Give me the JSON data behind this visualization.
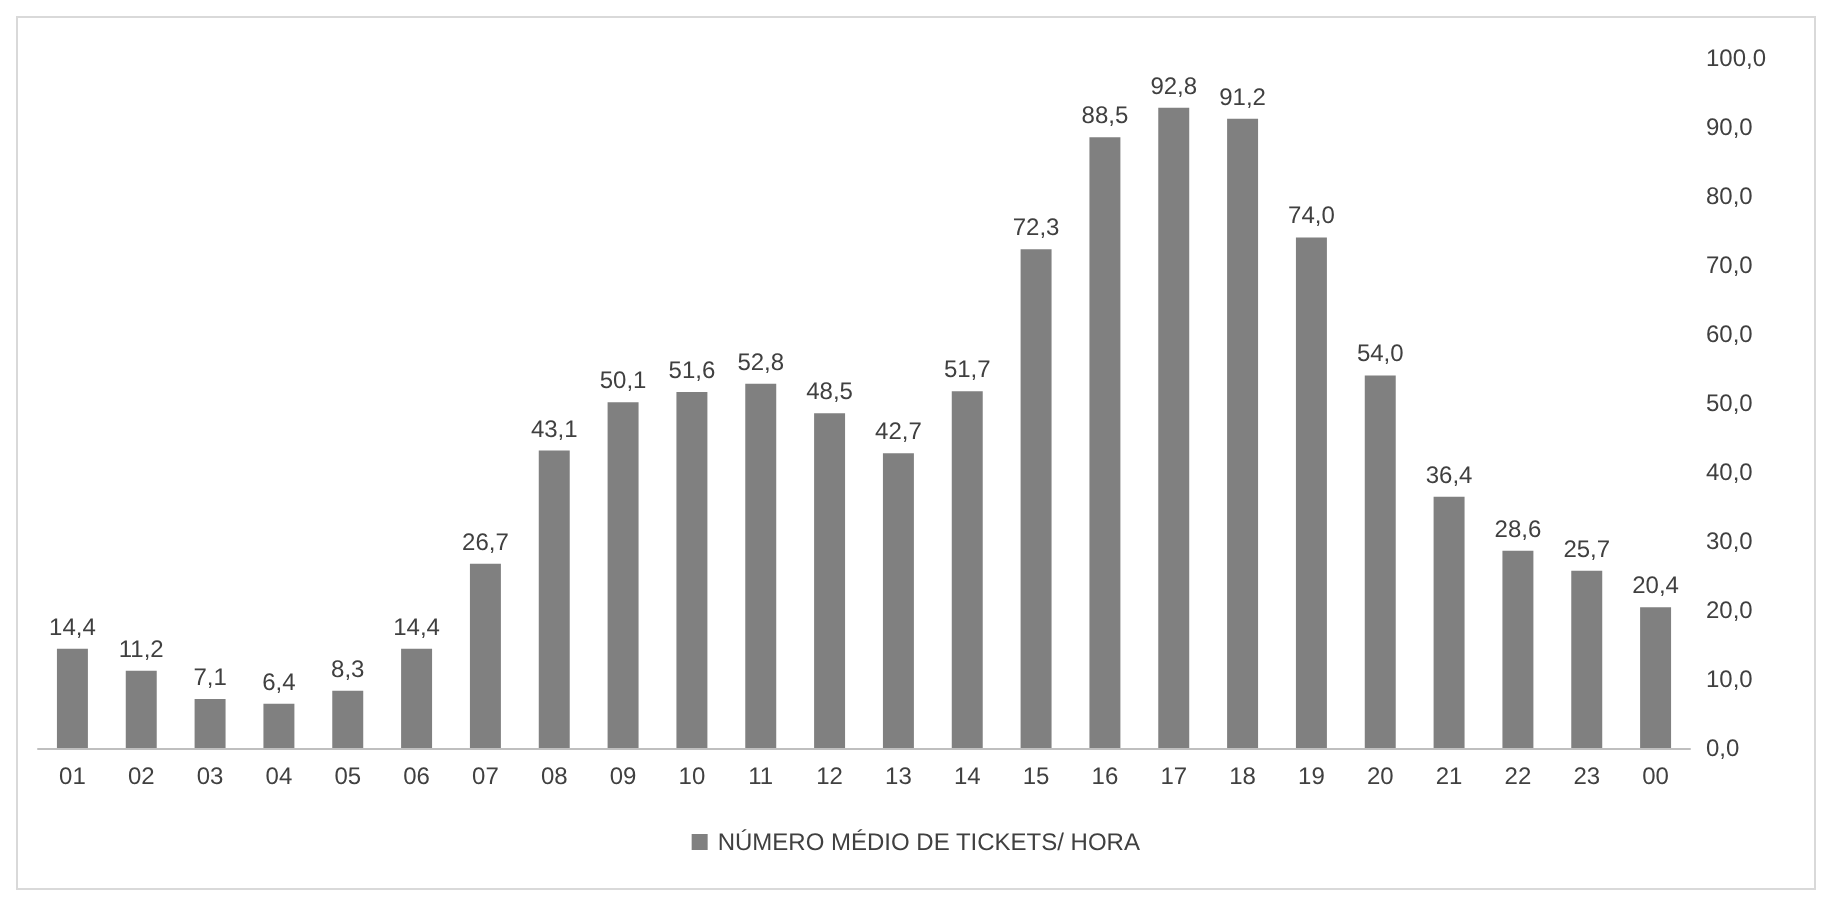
{
  "chart_data": {
    "type": "bar",
    "categories": [
      "01",
      "02",
      "03",
      "04",
      "05",
      "06",
      "07",
      "08",
      "09",
      "10",
      "11",
      "12",
      "13",
      "14",
      "15",
      "16",
      "17",
      "18",
      "19",
      "20",
      "21",
      "22",
      "23",
      "00"
    ],
    "series": [
      {
        "name": "NÚMERO MÉDIO DE TICKETS/ HORA",
        "color": "#808080",
        "values": [
          14.4,
          11.2,
          7.1,
          6.4,
          8.3,
          14.4,
          26.7,
          43.1,
          50.1,
          51.6,
          52.8,
          48.5,
          42.7,
          51.7,
          72.3,
          88.5,
          92.8,
          91.2,
          74.0,
          54.0,
          36.4,
          28.6,
          25.7,
          20.4
        ],
        "value_labels": [
          "14,4",
          "11,2",
          "7,1",
          "6,4",
          "8,3",
          "14,4",
          "26,7",
          "43,1",
          "50,1",
          "51,6",
          "52,8",
          "48,5",
          "42,7",
          "51,7",
          "72,3",
          "88,5",
          "92,8",
          "91,2",
          "74,0",
          "54,0",
          "36,4",
          "28,6",
          "25,7",
          "20,4"
        ]
      }
    ],
    "ylim": [
      0,
      100
    ],
    "yticks": [
      {
        "value": 0,
        "label": "0,0"
      },
      {
        "value": 10,
        "label": "10,0"
      },
      {
        "value": 20,
        "label": "20,0"
      },
      {
        "value": 30,
        "label": "30,0"
      },
      {
        "value": 40,
        "label": "40,0"
      },
      {
        "value": 50,
        "label": "50,0"
      },
      {
        "value": 60,
        "label": "60,0"
      },
      {
        "value": 70,
        "label": "70,0"
      },
      {
        "value": 80,
        "label": "80,0"
      },
      {
        "value": 90,
        "label": "90,0"
      },
      {
        "value": 100,
        "label": "100,0"
      }
    ],
    "grid": false,
    "legend": "bottom"
  }
}
